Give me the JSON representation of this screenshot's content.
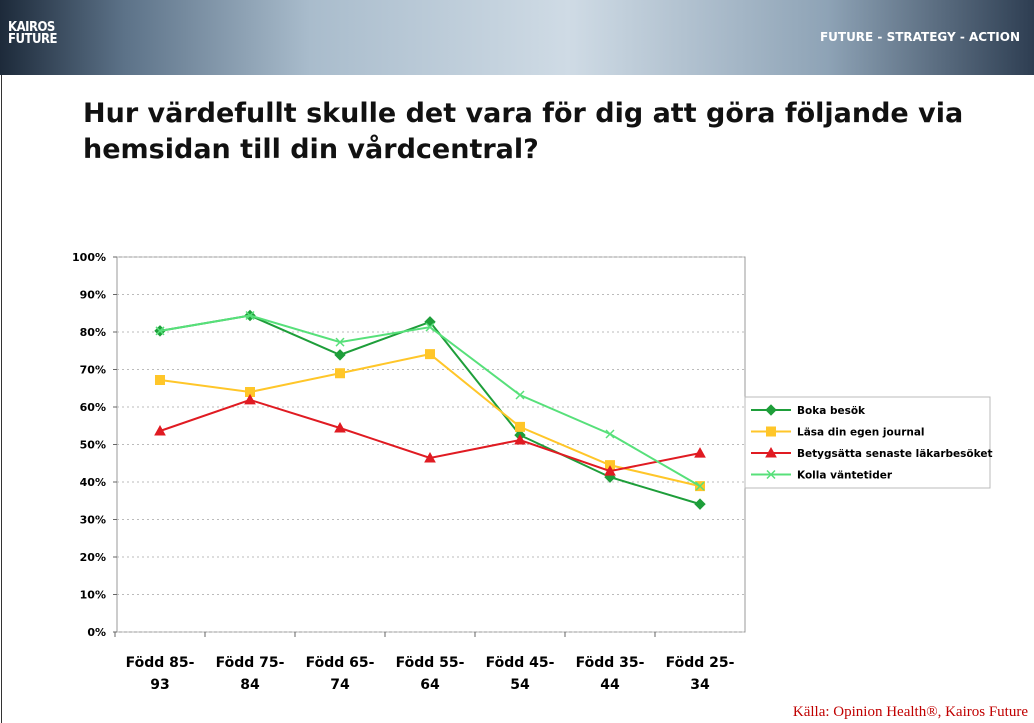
{
  "header": {
    "logo": "KAIROS\nFUTURE",
    "tagline": "FUTURE - STRATEGY - ACTION"
  },
  "source": "Källa: Opinion Health®, Kairos Future",
  "chart_data": {
    "type": "line",
    "title": "Hur värdefullt skulle det vara för dig att göra följande via hemsidan till din vårdcentral?",
    "categories": [
      "Född 85-\n93",
      "Född 75-\n84",
      "Född 65-\n74",
      "Född 55-\n64",
      "Född 45-\n54",
      "Född 35-\n44",
      "Född 25-\n34"
    ],
    "ylim": [
      0,
      100
    ],
    "yticks": [
      {
        "value": 0,
        "label": "0%"
      },
      {
        "value": 10,
        "label": "10%"
      },
      {
        "value": 20,
        "label": "20%"
      },
      {
        "value": 30,
        "label": "30%"
      },
      {
        "value": 40,
        "label": "40%"
      },
      {
        "value": 50,
        "label": "50%"
      },
      {
        "value": 60,
        "label": "60%"
      },
      {
        "value": 70,
        "label": "70%"
      },
      {
        "value": 80,
        "label": "80%"
      },
      {
        "value": 90,
        "label": "90%"
      },
      {
        "value": 100,
        "label": "100%"
      }
    ],
    "grid": true,
    "legend": "right",
    "series": [
      {
        "name": "Boka besök",
        "color": "#1e9e3a",
        "marker": "diamond",
        "values": [
          80.3,
          84.4,
          73.9,
          82.7,
          52.5,
          41.3,
          34.1
        ]
      },
      {
        "name": "Läsa din egen journal",
        "color": "#ffc629",
        "marker": "square",
        "values": [
          67.2,
          64.0,
          69.0,
          74.1,
          54.7,
          44.5,
          38.9
        ]
      },
      {
        "name": "Betygsätta senaste läkarbesöket",
        "color": "#e01b22",
        "marker": "triangle",
        "values": [
          53.6,
          61.9,
          54.4,
          46.4,
          51.2,
          42.9,
          47.7
        ]
      },
      {
        "name": "Kolla väntetider",
        "color": "#57e07a",
        "marker": "x",
        "values": [
          80.3,
          84.4,
          77.3,
          81.3,
          63.2,
          52.8,
          38.9
        ]
      }
    ]
  }
}
